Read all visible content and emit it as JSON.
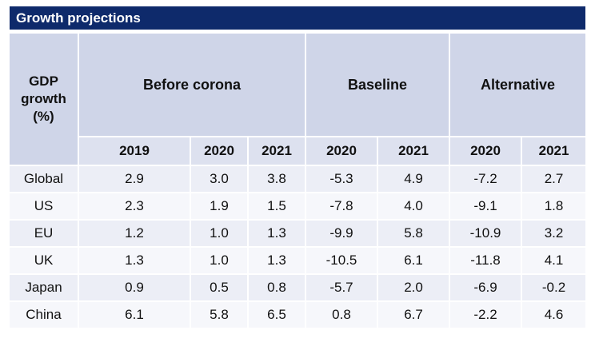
{
  "title": "Growth projections",
  "header": {
    "gdp_label_lines": [
      "GDP",
      "growth",
      "(%)"
    ],
    "groups": [
      "Before corona",
      "Baseline",
      "Alternative"
    ],
    "years": [
      "2019",
      "2020",
      "2021",
      "2020",
      "2021",
      "2020",
      "2021"
    ]
  },
  "rows": [
    {
      "label": "Global",
      "values": [
        "2.9",
        "3.0",
        "3.8",
        "-5.3",
        "4.9",
        "-7.2",
        "2.7"
      ]
    },
    {
      "label": "US",
      "values": [
        "2.3",
        "1.9",
        "1.5",
        "-7.8",
        "4.0",
        "-9.1",
        "1.8"
      ]
    },
    {
      "label": "EU",
      "values": [
        "1.2",
        "1.0",
        "1.3",
        "-9.9",
        "5.8",
        "-10.9",
        "3.2"
      ]
    },
    {
      "label": "UK",
      "values": [
        "1.3",
        "1.0",
        "1.3",
        "-10.5",
        "6.1",
        "-11.8",
        "4.1"
      ]
    },
    {
      "label": "Japan",
      "values": [
        "0.9",
        "0.5",
        "0.8",
        "-5.7",
        "2.0",
        "-6.9",
        "-0.2"
      ]
    },
    {
      "label": "China",
      "values": [
        "6.1",
        "5.8",
        "6.5",
        "0.8",
        "6.7",
        "-2.2",
        "4.6"
      ]
    }
  ],
  "colors": {
    "title_bar": "#0e2a6b",
    "header_fill": "#cfd5e8",
    "year_row_fill": "#dde1ef",
    "row_fill_odd": "#eceef6",
    "row_fill_even": "#f6f7fb"
  }
}
